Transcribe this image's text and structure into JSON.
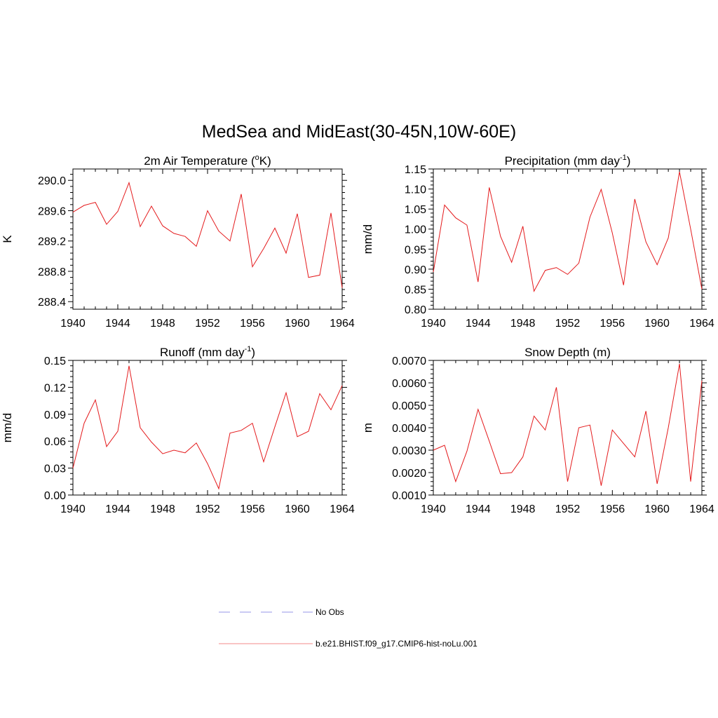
{
  "figure": {
    "title": "MedSea and MidEast(30-45N,10W-60E)"
  },
  "legend": {
    "entries": [
      {
        "label": "No Obs",
        "color": "#aaaaee",
        "dash": "dashed"
      },
      {
        "label": "b.e21.BHIST.f09_g17.CMIP6-hist-noLu.001",
        "color": "#e41a1c",
        "dash": "solid"
      }
    ]
  },
  "chart_data": [
    {
      "type": "line",
      "title": "2m Air Temperature (",
      "title_sup": "o",
      "title_after": "K)",
      "ylabel": "K",
      "xlim": [
        1940,
        1964
      ],
      "ylim": [
        288.3,
        290.15
      ],
      "xticks": [
        1940,
        1944,
        1948,
        1952,
        1956,
        1960,
        1964
      ],
      "yticks": [
        288.4,
        288.8,
        289.2,
        289.6,
        290.0
      ],
      "ytick_labels": [
        "288.4",
        "288.8",
        "289.2",
        "289.6",
        "290.0"
      ],
      "x": [
        1940,
        1941,
        1942,
        1943,
        1944,
        1945,
        1946,
        1947,
        1948,
        1949,
        1950,
        1951,
        1952,
        1953,
        1954,
        1955,
        1956,
        1957,
        1958,
        1959,
        1960,
        1961,
        1962,
        1963,
        1964
      ],
      "series": [
        {
          "name": "b.e21.BHIST.f09_g17.CMIP6-hist-noLu.001",
          "color": "#e41a1c",
          "values": [
            289.58,
            289.67,
            289.71,
            289.42,
            289.59,
            289.97,
            289.39,
            289.66,
            289.4,
            289.3,
            289.26,
            289.13,
            289.6,
            289.33,
            289.2,
            289.82,
            288.86,
            289.1,
            289.37,
            289.04,
            289.56,
            288.72,
            288.75,
            289.57,
            288.58
          ]
        }
      ]
    },
    {
      "type": "line",
      "title": "Precipitation (mm day",
      "title_sup": "-1",
      "title_after": ")",
      "ylabel": "mm/d",
      "xlim": [
        1940,
        1964
      ],
      "ylim": [
        0.8,
        1.15
      ],
      "xticks": [
        1940,
        1944,
        1948,
        1952,
        1956,
        1960,
        1964
      ],
      "yticks": [
        0.8,
        0.85,
        0.9,
        0.95,
        1.0,
        1.05,
        1.1,
        1.15
      ],
      "ytick_labels": [
        "0.80",
        "0.85",
        "0.90",
        "0.95",
        "1.00",
        "1.05",
        "1.10",
        "1.15"
      ],
      "x": [
        1940,
        1941,
        1942,
        1943,
        1944,
        1945,
        1946,
        1947,
        1948,
        1949,
        1950,
        1951,
        1952,
        1953,
        1954,
        1955,
        1956,
        1957,
        1958,
        1959,
        1960,
        1961,
        1962,
        1963,
        1964
      ],
      "series": [
        {
          "name": "b.e21.BHIST.f09_g17.CMIP6-hist-noLu.001",
          "color": "#e41a1c",
          "values": [
            0.893,
            1.06,
            1.028,
            1.01,
            0.868,
            1.104,
            0.982,
            0.917,
            1.007,
            0.845,
            0.897,
            0.904,
            0.887,
            0.915,
            1.03,
            1.099,
            0.99,
            0.86,
            1.075,
            0.968,
            0.911,
            0.978,
            1.143,
            1.0,
            0.85
          ]
        }
      ]
    },
    {
      "type": "line",
      "title": "Runoff (mm day",
      "title_sup": "-1",
      "title_after": ")",
      "ylabel": "mm/d",
      "xlim": [
        1940,
        1964
      ],
      "ylim": [
        0.0,
        0.15
      ],
      "xticks": [
        1940,
        1944,
        1948,
        1952,
        1956,
        1960,
        1964
      ],
      "yticks": [
        0.0,
        0.03,
        0.06,
        0.09,
        0.12,
        0.15
      ],
      "ytick_labels": [
        "0.00",
        "0.03",
        "0.06",
        "0.09",
        "0.12",
        "0.15"
      ],
      "x": [
        1940,
        1941,
        1942,
        1943,
        1944,
        1945,
        1946,
        1947,
        1948,
        1949,
        1950,
        1951,
        1952,
        1953,
        1954,
        1955,
        1956,
        1957,
        1958,
        1959,
        1960,
        1961,
        1962,
        1963,
        1964
      ],
      "series": [
        {
          "name": "b.e21.BHIST.f09_g17.CMIP6-hist-noLu.001",
          "color": "#e41a1c",
          "values": [
            0.03,
            0.08,
            0.106,
            0.054,
            0.071,
            0.144,
            0.075,
            0.059,
            0.046,
            0.05,
            0.047,
            0.058,
            0.035,
            0.007,
            0.069,
            0.072,
            0.08,
            0.037,
            0.076,
            0.114,
            0.065,
            0.071,
            0.113,
            0.095,
            0.122
          ]
        }
      ]
    },
    {
      "type": "line",
      "title": "Snow Depth (m)",
      "title_sup": "",
      "title_after": "",
      "ylabel": "m",
      "xlim": [
        1940,
        1964
      ],
      "ylim": [
        0.001,
        0.007
      ],
      "xticks": [
        1940,
        1944,
        1948,
        1952,
        1956,
        1960,
        1964
      ],
      "yticks": [
        0.001,
        0.002,
        0.003,
        0.004,
        0.005,
        0.006,
        0.007
      ],
      "ytick_labels": [
        "0.0010",
        "0.0020",
        "0.0030",
        "0.0040",
        "0.0050",
        "0.0060",
        "0.0070"
      ],
      "x": [
        1940,
        1941,
        1942,
        1943,
        1944,
        1945,
        1946,
        1947,
        1948,
        1949,
        1950,
        1951,
        1952,
        1953,
        1954,
        1955,
        1956,
        1957,
        1958,
        1959,
        1960,
        1961,
        1962,
        1963,
        1964
      ],
      "series": [
        {
          "name": "b.e21.BHIST.f09_g17.CMIP6-hist-noLu.001",
          "color": "#e41a1c",
          "values": [
            0.003,
            0.00322,
            0.0016,
            0.00295,
            0.00482,
            0.0034,
            0.00195,
            0.002,
            0.0027,
            0.00452,
            0.0039,
            0.0058,
            0.0016,
            0.004,
            0.00412,
            0.00142,
            0.0039,
            0.0033,
            0.0027,
            0.00474,
            0.0015,
            0.004,
            0.00685,
            0.0016,
            0.0061
          ]
        }
      ]
    }
  ]
}
